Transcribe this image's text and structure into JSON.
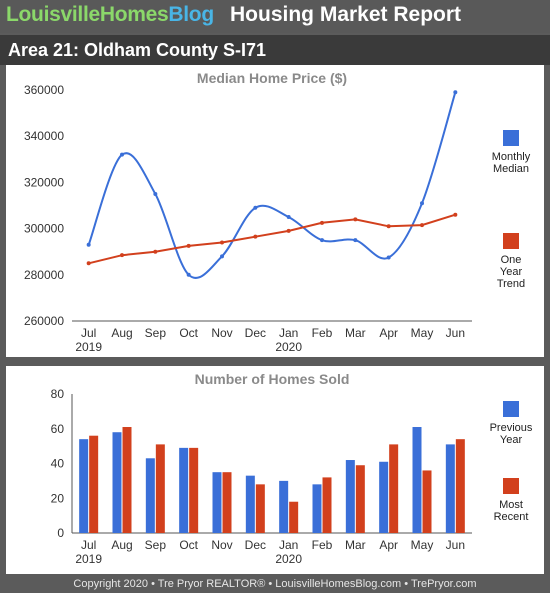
{
  "header": {
    "brand_part1": "LouisvilleHomes",
    "brand_part2": "Blog",
    "title": "Housing Market Report"
  },
  "area_title": "Area 21: Oldham County S-I71",
  "colors": {
    "blue": "#3a6fd8",
    "red": "#d2401d",
    "brand_green": "#8bd86a",
    "brand_blue": "#49b5e6"
  },
  "chart_data": [
    {
      "type": "line",
      "title": "Median Home Price ($)",
      "categories": [
        "Jul",
        "Aug",
        "Sep",
        "Oct",
        "Nov",
        "Dec",
        "Jan",
        "Feb",
        "Mar",
        "Apr",
        "May",
        "Jun"
      ],
      "year_labels": [
        {
          "index": 0,
          "label": "2019"
        },
        {
          "index": 6,
          "label": "2020"
        }
      ],
      "ylim": [
        260000,
        360000
      ],
      "yticks": [
        "260000",
        "280000",
        "300000",
        "320000",
        "340000",
        "360000"
      ],
      "grid": false,
      "legend_position": "right",
      "series": [
        {
          "name": "Monthly Median",
          "legend_lines": [
            "Monthly",
            "Median"
          ],
          "color": "#3a6fd8",
          "smooth": true,
          "values": [
            293000,
            332000,
            315000,
            280000,
            288000,
            309000,
            305000,
            295000,
            295000,
            287500,
            311000,
            359000
          ]
        },
        {
          "name": "One Year Trend",
          "legend_lines": [
            "One",
            "Year",
            "Trend"
          ],
          "color": "#d2401d",
          "smooth": false,
          "values": [
            285000,
            288500,
            290000,
            292500,
            294000,
            296500,
            299000,
            302500,
            304000,
            301000,
            301500,
            306000
          ]
        }
      ]
    },
    {
      "type": "bar",
      "title": "Number of Homes Sold",
      "categories": [
        "Jul",
        "Aug",
        "Sep",
        "Oct",
        "Nov",
        "Dec",
        "Jan",
        "Feb",
        "Mar",
        "Apr",
        "May",
        "Jun"
      ],
      "year_labels": [
        {
          "index": 0,
          "label": "2019"
        },
        {
          "index": 6,
          "label": "2020"
        }
      ],
      "ylim": [
        0,
        80
      ],
      "yticks": [
        "0",
        "20",
        "40",
        "60",
        "80"
      ],
      "grid": false,
      "legend_position": "right",
      "series": [
        {
          "name": "Previous Year",
          "legend_lines": [
            "Previous",
            "Year"
          ],
          "color": "#3a6fd8",
          "values": [
            54,
            58,
            43,
            49,
            35,
            33,
            30,
            28,
            42,
            41,
            61,
            51
          ]
        },
        {
          "name": "Most Recent",
          "legend_lines": [
            "Most",
            "Recent"
          ],
          "color": "#d2401d",
          "values": [
            56,
            61,
            51,
            49,
            35,
            28,
            18,
            32,
            39,
            51,
            36,
            54
          ]
        }
      ]
    }
  ],
  "footer": "Copyright 2020 • Tre Pryor REALTOR® • LouisvilleHomesBlog.com • TrePryor.com"
}
